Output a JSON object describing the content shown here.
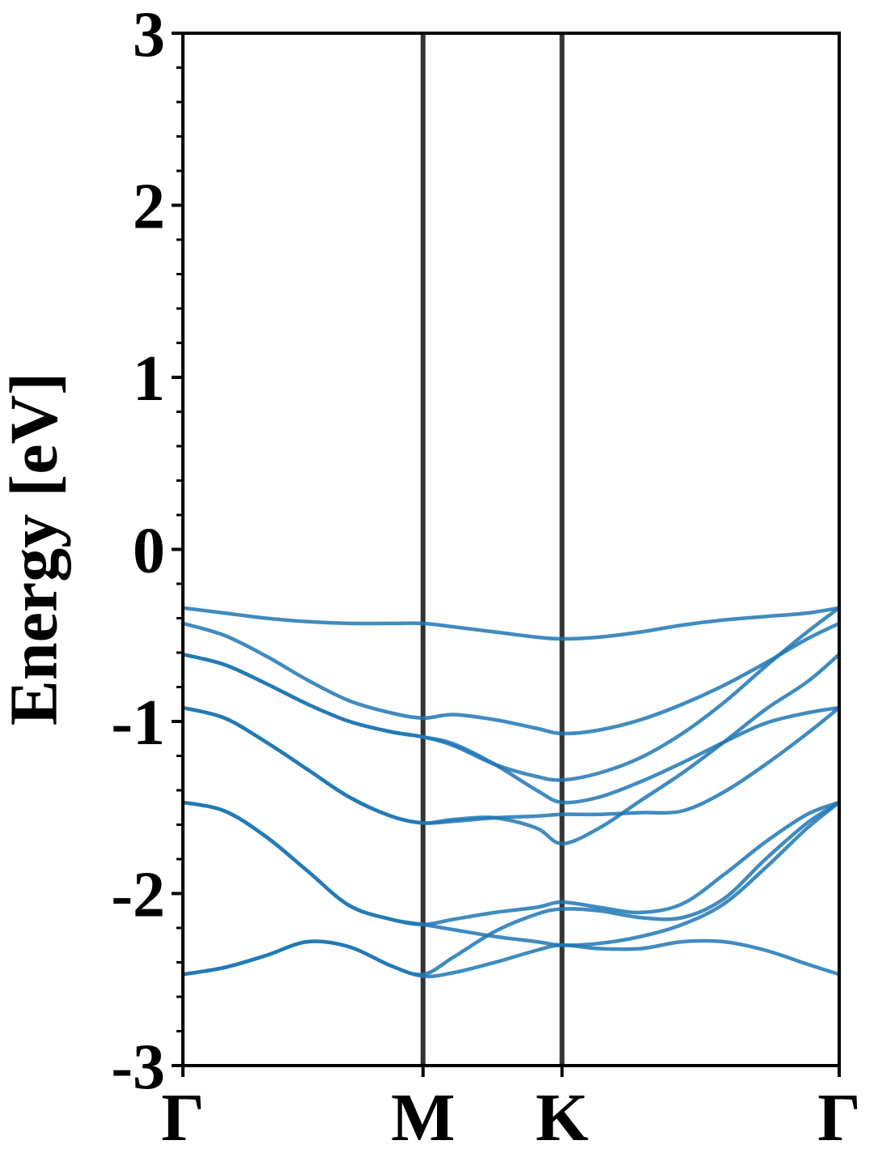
{
  "chart_data": {
    "type": "line",
    "ylabel": "Energy [eV]",
    "color": "#1f77b4",
    "x": [
      0,
      0.1,
      0.2,
      0.3,
      0.4,
      0.5,
      0.577,
      0.65,
      0.75,
      0.85,
      0.911,
      1.0,
      1.1,
      1.2,
      1.3,
      1.4,
      1.5,
      1.577
    ],
    "xlim": [
      0,
      1.577
    ],
    "xticks": [
      {
        "value": 0,
        "label": "Γ"
      },
      {
        "value": 0.577,
        "label": "M"
      },
      {
        "value": 0.911,
        "label": "K"
      },
      {
        "value": 1.577,
        "label": "Γ"
      }
    ],
    "vlines_at_xticks": true,
    "ylim": [
      -3,
      3
    ],
    "yticks": [
      -3,
      -2,
      -1,
      0,
      1,
      2,
      3
    ],
    "yminorticks": [
      -2.8,
      -2.6,
      -2.4,
      -2.2,
      -1.8,
      -1.6,
      -1.4,
      -1.2,
      -0.8,
      -0.6,
      -0.4,
      -0.2,
      0.2,
      0.4,
      0.6,
      0.8,
      1.2,
      1.4,
      1.6,
      1.8,
      2.2,
      2.4,
      2.6,
      2.8
    ],
    "series": [
      {
        "values": [
          -0.34,
          -0.37,
          -0.4,
          -0.42,
          -0.43,
          -0.43,
          -0.43,
          -0.45,
          -0.48,
          -0.51,
          -0.52,
          -0.51,
          -0.48,
          -0.44,
          -0.41,
          -0.39,
          -0.37,
          -0.34
        ]
      },
      {
        "values": [
          -0.43,
          -0.5,
          -0.62,
          -0.76,
          -0.88,
          -0.95,
          -0.98,
          -0.96,
          -0.99,
          -1.04,
          -1.07,
          -1.05,
          -0.99,
          -0.9,
          -0.79,
          -0.66,
          -0.52,
          -0.43
        ]
      },
      {
        "values": [
          -0.61,
          -0.67,
          -0.78,
          -0.9,
          -1.0,
          -1.06,
          -1.09,
          -1.14,
          -1.25,
          -1.32,
          -1.34,
          -1.3,
          -1.21,
          -1.07,
          -0.89,
          -0.68,
          -0.48,
          -0.34
        ]
      },
      {
        "values": [
          -0.61,
          -0.67,
          -0.78,
          -0.9,
          -1.0,
          -1.06,
          -1.09,
          -1.13,
          -1.25,
          -1.4,
          -1.47,
          -1.44,
          -1.35,
          -1.24,
          -1.12,
          -1.01,
          -0.95,
          -0.92
        ]
      },
      {
        "values": [
          -0.92,
          -0.98,
          -1.12,
          -1.28,
          -1.44,
          -1.55,
          -1.59,
          -1.57,
          -1.56,
          -1.62,
          -1.71,
          -1.62,
          -1.46,
          -1.3,
          -1.12,
          -0.93,
          -0.77,
          -0.61
        ]
      },
      {
        "values": [
          -0.92,
          -0.98,
          -1.12,
          -1.28,
          -1.44,
          -1.55,
          -1.59,
          -1.58,
          -1.56,
          -1.55,
          -1.54,
          -1.54,
          -1.53,
          -1.52,
          -1.41,
          -1.25,
          -1.07,
          -0.92
        ]
      },
      {
        "values": [
          -1.47,
          -1.52,
          -1.67,
          -1.87,
          -2.07,
          -2.15,
          -2.18,
          -2.15,
          -2.11,
          -2.08,
          -2.05,
          -2.08,
          -2.11,
          -2.06,
          -1.89,
          -1.7,
          -1.54,
          -1.47
        ]
      },
      {
        "values": [
          -1.47,
          -1.52,
          -1.67,
          -1.87,
          -2.07,
          -2.15,
          -2.18,
          -2.21,
          -2.25,
          -2.28,
          -2.3,
          -2.29,
          -2.25,
          -2.18,
          -2.06,
          -1.85,
          -1.62,
          -1.47
        ]
      },
      {
        "values": [
          -2.47,
          -2.43,
          -2.36,
          -2.28,
          -2.31,
          -2.42,
          -2.47,
          -2.37,
          -2.22,
          -2.12,
          -2.09,
          -2.1,
          -2.14,
          -2.14,
          -2.03,
          -1.8,
          -1.59,
          -1.47
        ]
      },
      {
        "values": [
          -2.47,
          -2.43,
          -2.36,
          -2.28,
          -2.31,
          -2.42,
          -2.48,
          -2.46,
          -2.4,
          -2.33,
          -2.3,
          -2.32,
          -2.32,
          -2.28,
          -2.28,
          -2.33,
          -2.41,
          -2.47
        ]
      }
    ]
  }
}
